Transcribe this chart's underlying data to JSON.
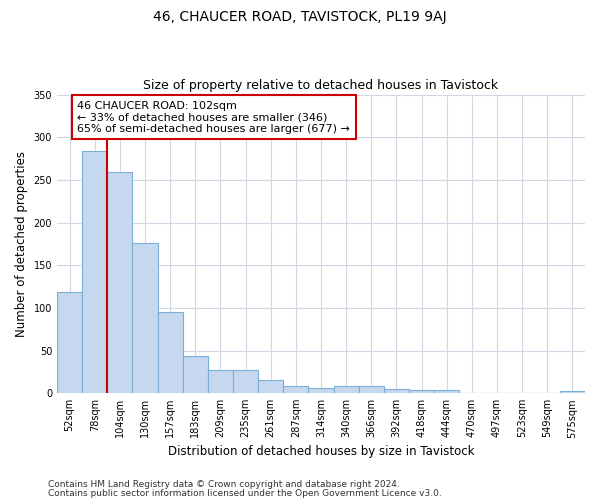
{
  "title": "46, CHAUCER ROAD, TAVISTOCK, PL19 9AJ",
  "subtitle": "Size of property relative to detached houses in Tavistock",
  "xlabel": "Distribution of detached houses by size in Tavistock",
  "ylabel": "Number of detached properties",
  "categories": [
    "52sqm",
    "78sqm",
    "104sqm",
    "130sqm",
    "157sqm",
    "183sqm",
    "209sqm",
    "235sqm",
    "261sqm",
    "287sqm",
    "314sqm",
    "340sqm",
    "366sqm",
    "392sqm",
    "418sqm",
    "444sqm",
    "470sqm",
    "497sqm",
    "523sqm",
    "549sqm",
    "575sqm"
  ],
  "values": [
    119,
    284,
    259,
    176,
    95,
    44,
    27,
    27,
    15,
    8,
    6,
    8,
    8,
    5,
    4,
    4,
    0,
    0,
    0,
    0,
    3
  ],
  "bar_color": "#c5d8f0",
  "bar_edge_color": "#7bafd4",
  "property_line_color": "#cc0000",
  "annotation_line1": "46 CHAUCER ROAD: 102sqm",
  "annotation_line2": "← 33% of detached houses are smaller (346)",
  "annotation_line3": "65% of semi-detached houses are larger (677) →",
  "annotation_box_color": "#ffffff",
  "annotation_box_edge_color": "#cc0000",
  "ylim": [
    0,
    350
  ],
  "yticks": [
    0,
    50,
    100,
    150,
    200,
    250,
    300,
    350
  ],
  "footnote1": "Contains HM Land Registry data © Crown copyright and database right 2024.",
  "footnote2": "Contains public sector information licensed under the Open Government Licence v3.0.",
  "bg_color": "#ffffff",
  "plot_bg_color": "#ffffff",
  "grid_color": "#d0d8e8",
  "title_fontsize": 10,
  "subtitle_fontsize": 9,
  "axis_label_fontsize": 8.5,
  "tick_fontsize": 7,
  "annotation_fontsize": 8,
  "footnote_fontsize": 6.5
}
